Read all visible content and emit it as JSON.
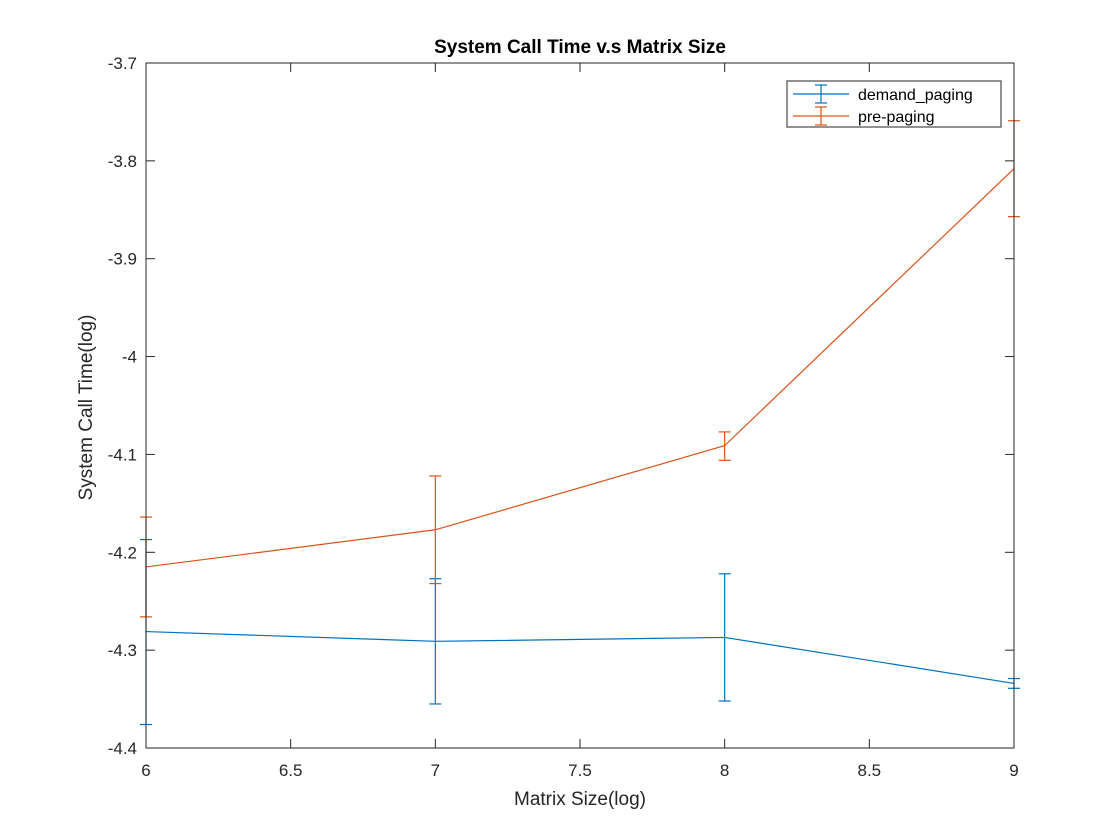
{
  "chart_data": {
    "type": "line",
    "title": "System Call Time v.s Matrix Size",
    "xlabel": "Matrix Size(log)",
    "ylabel": "System Call Time(log)",
    "xlim": [
      6,
      9
    ],
    "ylim": [
      -4.4,
      -3.7
    ],
    "x_ticks": [
      6,
      6.5,
      7,
      7.5,
      8,
      8.5,
      9
    ],
    "x_tick_labels": [
      "6",
      "6.5",
      "7",
      "7.5",
      "8",
      "8.5",
      "9"
    ],
    "y_ticks": [
      -3.7,
      -3.8,
      -3.9,
      -4.0,
      -4.1,
      -4.2,
      -4.3,
      -4.4
    ],
    "y_tick_labels": [
      "-3.7",
      "-3.8",
      "-3.9",
      "-4",
      "-4.1",
      "-4.2",
      "-4.3",
      "-4.4"
    ],
    "grid": false,
    "legend_position": "top-right",
    "x": [
      6,
      7,
      8,
      9
    ],
    "series": [
      {
        "name": "demand_paging",
        "color": "#0072BD",
        "values": [
          -4.281,
          -4.291,
          -4.287,
          -4.334
        ],
        "err_low": [
          -4.376,
          -4.355,
          -4.352,
          -4.339
        ],
        "err_high": [
          -4.187,
          -4.227,
          -4.222,
          -4.329
        ]
      },
      {
        "name": "pre-paging",
        "color": "#D95319",
        "values": [
          -4.215,
          -4.177,
          -4.091,
          -3.808
        ],
        "err_low": [
          -4.266,
          -4.232,
          -4.106,
          -3.857
        ],
        "err_high": [
          -4.164,
          -4.122,
          -4.077,
          -3.759
        ]
      }
    ]
  }
}
